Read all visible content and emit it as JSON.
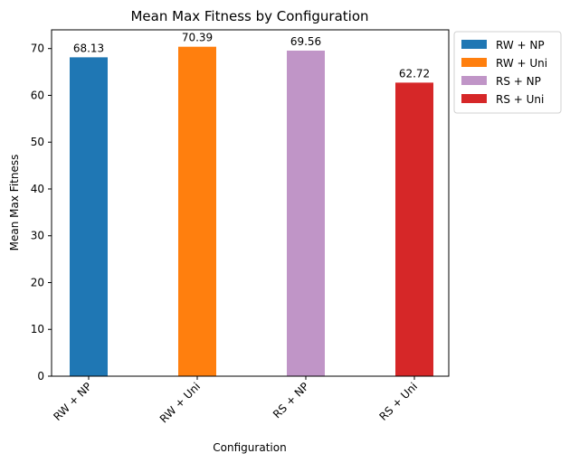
{
  "chart_data": {
    "type": "bar",
    "title": "Mean Max Fitness by Configuration",
    "xlabel": "Configuration",
    "ylabel": "Mean Max Fitness",
    "categories": [
      "RW + NP",
      "RW + Uni",
      "RS + NP",
      "RS + Uni"
    ],
    "values": [
      68.13,
      70.39,
      69.56,
      62.72
    ],
    "value_labels": [
      "68.13",
      "70.39",
      "69.56",
      "62.72"
    ],
    "colors": [
      "#1f77b4",
      "#ff7f0e",
      "#c095c7",
      "#d62728"
    ],
    "ylim": [
      0,
      74
    ],
    "yticks": [
      0,
      10,
      20,
      30,
      40,
      50,
      60,
      70
    ],
    "grid": false,
    "legend": {
      "placement": "outside-top-right",
      "entries": [
        "RW + NP",
        "RW + Uni",
        "RS + NP",
        "RS + Uni"
      ]
    }
  }
}
